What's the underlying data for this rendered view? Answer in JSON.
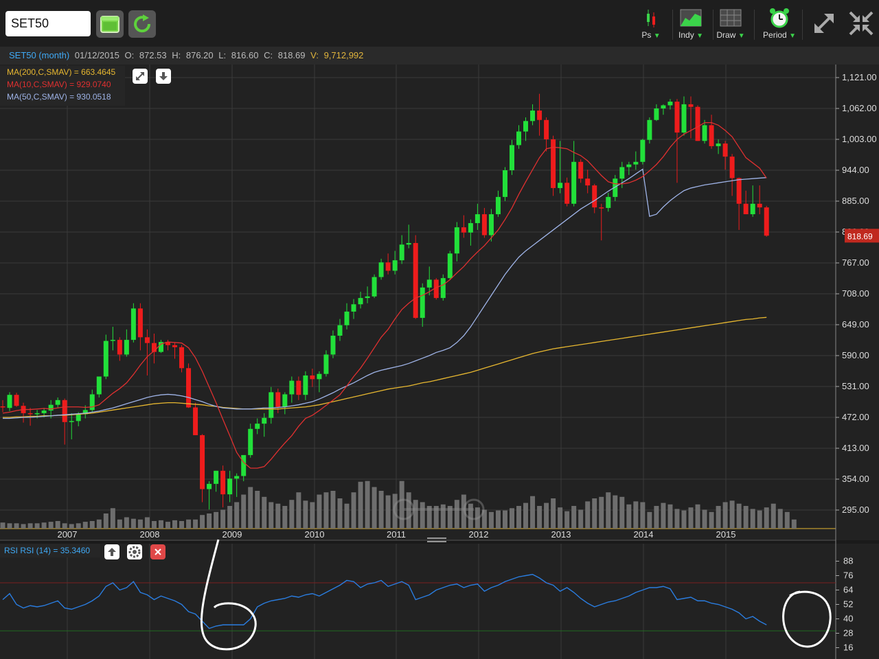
{
  "toolbar": {
    "symbol": "SET50",
    "icons": [
      "calendar-icon",
      "refresh-icon"
    ],
    "menu": [
      {
        "label": "Ps",
        "icon": "candlestick-icon"
      },
      {
        "label": "Indy",
        "icon": "indicator-chart-icon"
      },
      {
        "label": "Draw",
        "icon": "draw-grid-icon"
      },
      {
        "label": "Period",
        "icon": "alarm-clock-icon"
      }
    ],
    "arrow": "▼",
    "right_icons": [
      "expand-icon",
      "collapse-icon"
    ]
  },
  "info": {
    "series": "SET50 (month)",
    "date": "01/12/2015",
    "o_label": "O:",
    "o": "872.53",
    "h_label": "H:",
    "h": "876.20",
    "l_label": "L:",
    "l": "816.60",
    "c_label": "C:",
    "c": "818.69",
    "v_label": "V:",
    "v": "9,712,992"
  },
  "legend": {
    "ma200": "MA(200,C,SMAV) = 663.4645",
    "ma10": "MA(10,C,SMAV) = 929.0740",
    "ma50": "MA(50,C,SMAV) = 930.0518"
  },
  "rsi_legend": "RSI RSI (14) = 35.3460",
  "last_price_label": "818.69",
  "colors": {
    "up": "#22e03a",
    "down": "#ee1c1c",
    "ma200": "#e8b830",
    "ma10": "#e03030",
    "ma50": "#9fb4e8",
    "rsi": "#2a7de0",
    "volume": "#6e6e6e",
    "background": "#222222"
  },
  "chart_data": [
    {
      "type": "candlestick",
      "interval": "month",
      "x_labels": [
        "2007",
        "2008",
        "2009",
        "2010",
        "2011",
        "2012",
        "2013",
        "2014",
        "2015"
      ],
      "y_ticks": [
        "1,121.00",
        "1,062.00",
        "1,003.00",
        "944.00",
        "885.00",
        "826.00",
        "767.00",
        "708.00",
        "649.00",
        "590.00",
        "531.00",
        "472.00",
        "413.00",
        "354.00",
        "295.00"
      ],
      "ylim": [
        295,
        1121
      ],
      "start": "2006-05",
      "ohlc": [
        [
          493,
          505,
          482,
          491
        ],
        [
          490,
          520,
          484,
          515
        ],
        [
          515,
          519,
          492,
          494
        ],
        [
          494,
          500,
          462,
          480
        ],
        [
          480,
          490,
          456,
          479
        ],
        [
          479,
          486,
          470,
          480
        ],
        [
          480,
          490,
          472,
          485
        ],
        [
          485,
          505,
          470,
          496
        ],
        [
          496,
          510,
          491,
          505
        ],
        [
          505,
          508,
          420,
          463
        ],
        [
          463,
          480,
          430,
          465
        ],
        [
          465,
          482,
          455,
          478
        ],
        [
          478,
          495,
          470,
          486
        ],
        [
          486,
          525,
          482,
          516
        ],
        [
          516,
          550,
          510,
          550
        ],
        [
          550,
          630,
          545,
          618
        ],
        [
          618,
          645,
          600,
          620
        ],
        [
          620,
          625,
          580,
          592
        ],
        [
          592,
          640,
          588,
          620
        ],
        [
          620,
          690,
          615,
          680
        ],
        [
          680,
          690,
          600,
          625
        ],
        [
          625,
          640,
          552,
          614
        ],
        [
          614,
          632,
          575,
          597
        ],
        [
          597,
          620,
          595,
          616
        ],
        [
          616,
          620,
          600,
          610
        ],
        [
          610,
          615,
          584,
          606
        ],
        [
          606,
          610,
          558,
          566
        ],
        [
          566,
          575,
          490,
          491
        ],
        [
          491,
          500,
          438,
          438
        ],
        [
          438,
          440,
          310,
          335
        ],
        [
          335,
          350,
          296,
          345
        ],
        [
          345,
          370,
          330,
          370
        ],
        [
          370,
          380,
          300,
          325
        ],
        [
          325,
          370,
          310,
          355
        ],
        [
          355,
          365,
          320,
          360
        ],
        [
          360,
          395,
          350,
          400
        ],
        [
          400,
          460,
          395,
          450
        ],
        [
          450,
          470,
          440,
          460
        ],
        [
          460,
          480,
          435,
          471
        ],
        [
          471,
          530,
          460,
          520
        ],
        [
          520,
          527,
          480,
          492
        ],
        [
          492,
          520,
          478,
          516
        ],
        [
          516,
          550,
          500,
          542
        ],
        [
          542,
          550,
          505,
          515
        ],
        [
          515,
          560,
          505,
          552
        ],
        [
          552,
          565,
          530,
          545
        ],
        [
          545,
          560,
          520,
          555
        ],
        [
          555,
          600,
          550,
          592
        ],
        [
          592,
          638,
          585,
          628
        ],
        [
          628,
          660,
          618,
          648
        ],
        [
          648,
          690,
          640,
          674
        ],
        [
          674,
          698,
          660,
          688
        ],
        [
          688,
          712,
          680,
          700
        ],
        [
          700,
          722,
          690,
          703
        ],
        [
          703,
          745,
          700,
          740
        ],
        [
          740,
          775,
          735,
          768
        ],
        [
          768,
          785,
          745,
          752
        ],
        [
          752,
          790,
          745,
          772
        ],
        [
          772,
          820,
          765,
          802
        ],
        [
          802,
          840,
          795,
          805
        ],
        [
          805,
          820,
          660,
          662
        ],
        [
          662,
          728,
          645,
          720
        ],
        [
          720,
          760,
          705,
          735
        ],
        [
          735,
          738,
          697,
          700
        ],
        [
          700,
          745,
          695,
          738
        ],
        [
          738,
          790,
          735,
          785
        ],
        [
          785,
          845,
          770,
          835
        ],
        [
          835,
          858,
          815,
          825
        ],
        [
          825,
          850,
          800,
          843
        ],
        [
          843,
          880,
          830,
          860
        ],
        [
          860,
          872,
          815,
          820
        ],
        [
          820,
          870,
          808,
          860
        ],
        [
          860,
          905,
          855,
          893
        ],
        [
          893,
          950,
          885,
          944
        ],
        [
          944,
          1002,
          935,
          992
        ],
        [
          992,
          1030,
          985,
          1018
        ],
        [
          1018,
          1045,
          1000,
          1038
        ],
        [
          1038,
          1070,
          1030,
          1058
        ],
        [
          1058,
          1090,
          1010,
          1040
        ],
        [
          1040,
          1045,
          980,
          1003
        ],
        [
          1003,
          1010,
          895,
          910
        ],
        [
          910,
          1000,
          900,
          920
        ],
        [
          920,
          930,
          875,
          880
        ],
        [
          880,
          1000,
          875,
          960
        ],
        [
          960,
          965,
          920,
          928
        ],
        [
          928,
          945,
          900,
          915
        ],
        [
          915,
          918,
          862,
          873
        ],
        [
          873,
          880,
          810,
          872
        ],
        [
          872,
          901,
          865,
          893
        ],
        [
          893,
          935,
          885,
          928
        ],
        [
          928,
          960,
          910,
          950
        ],
        [
          950,
          960,
          935,
          955
        ],
        [
          955,
          980,
          945,
          960
        ],
        [
          960,
          1004,
          955,
          1002
        ],
        [
          1002,
          1045,
          995,
          1040
        ],
        [
          1040,
          1070,
          1038,
          1062
        ],
        [
          1062,
          1070,
          1050,
          1068
        ],
        [
          1068,
          1080,
          1060,
          1075
        ],
        [
          1075,
          1080,
          920,
          1016
        ],
        [
          1016,
          1085,
          1010,
          1070
        ],
        [
          1070,
          1085,
          1005,
          1065
        ],
        [
          1065,
          1068,
          1000,
          1000
        ],
        [
          1000,
          1040,
          995,
          1030
        ],
        [
          1030,
          1050,
          985,
          990
        ],
        [
          990,
          1003,
          975,
          995
        ],
        [
          995,
          1000,
          945,
          970
        ],
        [
          970,
          975,
          895,
          929
        ],
        [
          929,
          930,
          830,
          880
        ],
        [
          880,
          905,
          860,
          860
        ],
        [
          860,
          915,
          855,
          880
        ],
        [
          880,
          915,
          860,
          873
        ],
        [
          873,
          876,
          817,
          819
        ]
      ],
      "ma10": [
        480,
        482,
        485,
        487,
        487,
        488,
        489,
        488,
        490,
        492,
        492,
        492,
        491,
        492,
        496,
        507,
        518,
        527,
        538,
        554,
        572,
        588,
        599,
        612,
        616,
        615,
        614,
        605,
        586,
        560,
        530,
        500,
        468,
        437,
        405,
        386,
        375,
        375,
        378,
        392,
        408,
        423,
        437,
        455,
        470,
        476,
        485,
        495,
        505,
        515,
        532,
        550,
        566,
        585,
        605,
        625,
        640,
        660,
        678,
        690,
        700,
        705,
        712,
        720,
        725,
        735,
        748,
        760,
        775,
        788,
        800,
        815,
        830,
        850,
        872,
        898,
        922,
        945,
        968,
        985,
        988,
        987,
        985,
        978,
        972,
        962,
        948,
        934,
        922,
        918,
        918,
        920,
        925,
        932,
        943,
        955,
        970,
        988,
        1003,
        1013,
        1020,
        1027,
        1035,
        1035,
        1030,
        1020,
        1008,
        988,
        968,
        958,
        948,
        929
      ],
      "ma50": [
        470,
        470,
        471,
        472,
        472,
        473,
        474,
        475,
        476,
        477,
        478,
        479,
        480,
        482,
        484,
        487,
        490,
        494,
        498,
        502,
        506,
        510,
        513,
        515,
        516,
        515,
        513,
        510,
        506,
        502,
        497,
        493,
        490,
        489,
        488,
        488,
        488,
        489,
        490,
        490,
        491,
        492,
        494,
        496,
        499,
        502,
        507,
        513,
        519,
        526,
        532,
        538,
        545,
        552,
        558,
        562,
        565,
        568,
        571,
        575,
        580,
        585,
        590,
        596,
        600,
        605,
        615,
        628,
        645,
        665,
        685,
        705,
        725,
        745,
        762,
        778,
        790,
        800,
        810,
        820,
        830,
        840,
        850,
        860,
        870,
        878,
        886,
        895,
        904,
        912,
        920,
        928,
        937,
        946,
        856,
        860,
        874,
        886,
        896,
        905,
        910,
        913,
        916,
        918,
        920,
        922,
        924,
        926,
        927,
        928,
        929,
        930
      ],
      "ma200": [
        472,
        472,
        473,
        473,
        474,
        474,
        475,
        475,
        476,
        476,
        477,
        478,
        479,
        480,
        482,
        484,
        486,
        488,
        490,
        492,
        494,
        496,
        498,
        499,
        500,
        500,
        499,
        498,
        497,
        496,
        494,
        493,
        491,
        490,
        489,
        488,
        488,
        488,
        488,
        488,
        488,
        489,
        490,
        491,
        492,
        494,
        496,
        499,
        502,
        505,
        508,
        511,
        514,
        517,
        520,
        523,
        526,
        528,
        530,
        532,
        535,
        538,
        540,
        543,
        546,
        549,
        552,
        555,
        558,
        562,
        566,
        570,
        574,
        578,
        582,
        586,
        590,
        594,
        597,
        600,
        603,
        605,
        607,
        609,
        611,
        613,
        615,
        617,
        619,
        621,
        623,
        625,
        627,
        629,
        631,
        633,
        635,
        637,
        639,
        641,
        643,
        645,
        647,
        649,
        651,
        653,
        655,
        657,
        659,
        660,
        662,
        663
      ],
      "volume_level": [
        0.08,
        0.07,
        0.07,
        0.06,
        0.07,
        0.07,
        0.08,
        0.09,
        0.1,
        0.07,
        0.06,
        0.07,
        0.09,
        0.1,
        0.12,
        0.2,
        0.27,
        0.12,
        0.15,
        0.13,
        0.12,
        0.15,
        0.1,
        0.11,
        0.09,
        0.11,
        0.1,
        0.12,
        0.12,
        0.18,
        0.2,
        0.22,
        0.25,
        0.3,
        0.35,
        0.45,
        0.55,
        0.5,
        0.42,
        0.35,
        0.33,
        0.3,
        0.38,
        0.48,
        0.37,
        0.35,
        0.45,
        0.48,
        0.5,
        0.4,
        0.33,
        0.48,
        0.62,
        0.63,
        0.55,
        0.5,
        0.44,
        0.46,
        0.63,
        0.48,
        0.38,
        0.35,
        0.3,
        0.3,
        0.32,
        0.3,
        0.38,
        0.45,
        0.33,
        0.28,
        0.25,
        0.22,
        0.24,
        0.24,
        0.27,
        0.3,
        0.34,
        0.43,
        0.3,
        0.34,
        0.4,
        0.28,
        0.23,
        0.3,
        0.25,
        0.36,
        0.4,
        0.42,
        0.48,
        0.44,
        0.42,
        0.32,
        0.36,
        0.35,
        0.22,
        0.3,
        0.34,
        0.32,
        0.26,
        0.24,
        0.28,
        0.32,
        0.25,
        0.22,
        0.3,
        0.35,
        0.37,
        0.33,
        0.3,
        0.26,
        0.24,
        0.28,
        0.33,
        0.26,
        0.22,
        0.12
      ]
    },
    {
      "type": "line",
      "name": "RSI (14)",
      "y_ticks": [
        "88",
        "76",
        "64",
        "52",
        "40",
        "28",
        "16"
      ],
      "ylim": [
        10,
        94
      ],
      "levels": [
        70,
        30
      ],
      "start": "2006-05",
      "values": [
        56,
        61,
        52,
        49,
        51,
        50,
        51,
        53,
        55,
        49,
        48,
        50,
        52,
        55,
        59,
        67,
        70,
        64,
        66,
        71,
        62,
        60,
        56,
        59,
        57,
        55,
        52,
        46,
        44,
        38,
        32,
        34,
        35,
        35,
        35,
        35,
        40,
        50,
        53,
        55,
        56,
        57,
        59,
        58,
        60,
        61,
        59,
        62,
        65,
        68,
        72,
        71,
        66,
        69,
        70,
        72,
        67,
        69,
        71,
        68,
        56,
        58,
        60,
        64,
        66,
        68,
        69,
        66,
        68,
        69,
        63,
        66,
        68,
        71,
        73,
        75,
        76,
        77,
        74,
        70,
        68,
        63,
        66,
        62,
        57,
        53,
        50,
        52,
        54,
        55,
        57,
        59,
        62,
        64,
        66,
        66,
        67,
        65,
        56,
        57,
        58,
        55,
        55,
        53,
        52,
        50,
        48,
        45,
        40,
        42,
        38,
        35
      ],
      "annotations": [
        "circle",
        "circle"
      ]
    }
  ]
}
